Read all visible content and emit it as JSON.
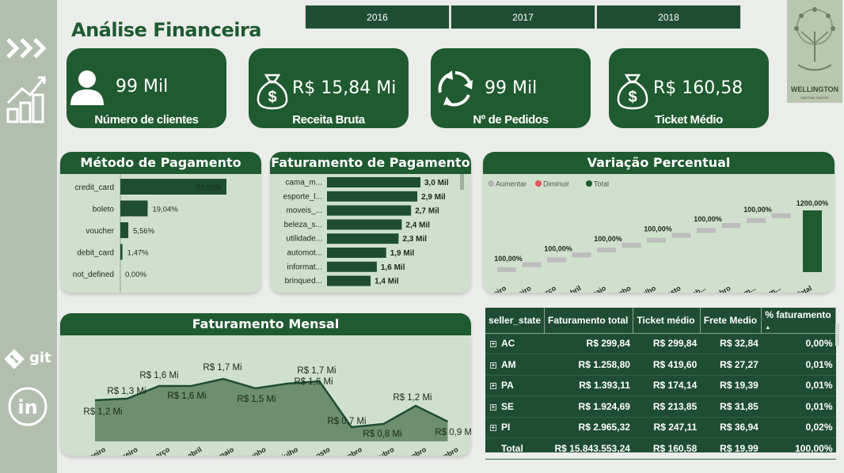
{
  "dashboard": {
    "title": "Análise Financeira"
  },
  "years": [
    "2016",
    "2017",
    "2018"
  ],
  "logo": {
    "name": "WELLINGTON",
    "subtitle": "MARTINS SANTOS"
  },
  "sidebar": {
    "git_label": "git"
  },
  "kpis": [
    {
      "value": "99 Mil",
      "label": "Número de clientes",
      "icon": "person-icon"
    },
    {
      "value": "R$ 15,84 Mi",
      "label": "Receita Bruta",
      "icon": "money-bag-icon"
    },
    {
      "value": "99 Mil",
      "label": "Nº de Pedidos",
      "icon": "recycle-icon"
    },
    {
      "value": "R$ 160,58",
      "label": "Ticket Médio",
      "icon": "money-bag-icon"
    }
  ],
  "payment_method": {
    "title": "Método de Pagamento",
    "chart_data": {
      "type": "bar",
      "categories": [
        "credit_card",
        "boleto",
        "voucher",
        "debit_card",
        "not_defined"
      ],
      "values": [
        73.92,
        19.04,
        5.56,
        1.47,
        0.0
      ],
      "labels": [
        "73,92%",
        "19,04%",
        "5,56%",
        "1,47%",
        "0,00%"
      ]
    }
  },
  "category_revenue": {
    "title": "Faturamento de Pagamento",
    "chart_data": {
      "type": "bar",
      "categories": [
        "cama_m...",
        "esporte_l...",
        "moveis_...",
        "beleza_s...",
        "utilidade...",
        "automot...",
        "informat...",
        "brinqued..."
      ],
      "values": [
        3.0,
        2.9,
        2.7,
        2.4,
        2.3,
        1.9,
        1.6,
        1.4
      ],
      "labels": [
        "3,0 Mil",
        "2,9 Mil",
        "2,7 Mil",
        "2,4 Mil",
        "2,3 Mil",
        "1,9 Mil",
        "1,6 Mil",
        "1,4 Mil"
      ]
    }
  },
  "variation": {
    "title": "Variação Percentual",
    "chart_data": {
      "type": "bar",
      "legend": [
        "Aumentar",
        "Diminuir",
        "Total"
      ],
      "legend_colors": [
        "#b5b5b5",
        "#e0525a",
        "#1f5a30"
      ],
      "categories": [
        "janeiro",
        "fevereiro",
        "março",
        "abril",
        "maio",
        "junho",
        "julho",
        "agosto",
        "setemb...",
        "outubro",
        "novem...",
        "dezem...",
        "Total"
      ],
      "labels": [
        "100,00%",
        "100,00%",
        "100,00%",
        "100,00%",
        "100,00%",
        "100,00%",
        "1200,00%"
      ]
    }
  },
  "monthly": {
    "title": "Faturamento Mensal",
    "chart_data": {
      "type": "area",
      "categories": [
        "janeiro",
        "fevereiro",
        "março",
        "abril",
        "maio",
        "junho",
        "julho",
        "agosto",
        "setembro",
        "outubro",
        "novembro",
        "dezembro"
      ],
      "values": [
        1.2,
        1.3,
        1.6,
        1.6,
        1.7,
        1.5,
        1.6,
        1.7,
        0.7,
        0.8,
        1.2,
        0.9
      ],
      "labels": [
        "R$ 1,2 Mi",
        "R$ 1,3 Mi",
        "R$ 1,6 Mi",
        "R$ 1,6 Mi",
        "R$ 1,7 Mi",
        "R$ 1,5 Mi",
        "R$ 1,6 Mi",
        "R$ 1,7 Mi",
        "R$ 0,7 Mi",
        "R$ 0,8 Mi",
        "R$ 1,2 Mi",
        "R$ 0,9 Mi"
      ]
    }
  },
  "state_table": {
    "columns": [
      "seller_state",
      "Faturamento total",
      "Ticket médio",
      "Frete Medio",
      "% faturamento"
    ],
    "rows": [
      [
        "AC",
        "R$ 299,84",
        "R$ 299,84",
        "R$ 32,84",
        "0,00%"
      ],
      [
        "AM",
        "R$ 1.258,80",
        "R$ 419,60",
        "R$ 27,27",
        "0,01%"
      ],
      [
        "PA",
        "R$ 1.393,11",
        "R$ 174,14",
        "R$ 19,39",
        "0,01%"
      ],
      [
        "SE",
        "R$ 1.924,69",
        "R$ 213,85",
        "R$ 31,85",
        "0,01%"
      ],
      [
        "PI",
        "R$ 2.965,32",
        "R$ 247,11",
        "R$ 36,94",
        "0,02%"
      ]
    ],
    "total": [
      "Total",
      "R$ 15.843.553,24",
      "R$ 160,58",
      "R$ 19,99",
      "100,00%"
    ]
  }
}
